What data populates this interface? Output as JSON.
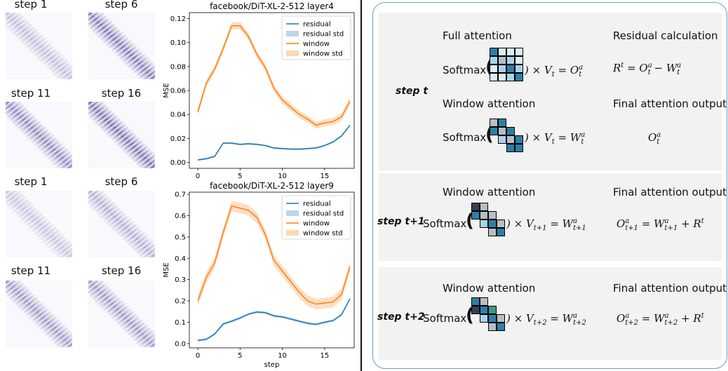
{
  "heatmaps": {
    "top": [
      {
        "label": "step 1",
        "intensity": 0.35
      },
      {
        "label": "step 6",
        "intensity": 0.8
      },
      {
        "label": "step 11",
        "intensity": 0.7
      },
      {
        "label": "step 16",
        "intensity": 0.85
      }
    ],
    "bottom": [
      {
        "label": "step 1",
        "intensity": 0.3
      },
      {
        "label": "step 6",
        "intensity": 0.45
      },
      {
        "label": "step 11",
        "intensity": 0.6
      },
      {
        "label": "step 16",
        "intensity": 0.6
      }
    ]
  },
  "chart_data": [
    {
      "type": "line",
      "title": "facebook/DiT-XL-2-512 layer4",
      "xlabel": "",
      "ylabel": "MSE",
      "xlim": [
        -1,
        18.5
      ],
      "ylim": [
        -0.005,
        0.125
      ],
      "xticks": [
        0,
        5,
        10,
        15
      ],
      "yticks": [
        0.0,
        0.02,
        0.04,
        0.06,
        0.08,
        0.1,
        0.12
      ],
      "ytick_labels": [
        "0.00",
        "0.02",
        "0.04",
        "0.06",
        "0.08",
        "0.10",
        "0.12"
      ],
      "legend": [
        "residual",
        "residual std",
        "window",
        "window std"
      ],
      "x": [
        0,
        1,
        2,
        3,
        4,
        5,
        6,
        7,
        8,
        9,
        10,
        11,
        12,
        13,
        14,
        15,
        16,
        17,
        18
      ],
      "series": [
        {
          "name": "residual",
          "color": "#1f77b4",
          "std": 0.0008,
          "values": [
            0.002,
            0.003,
            0.005,
            0.016,
            0.016,
            0.015,
            0.0155,
            0.015,
            0.014,
            0.012,
            0.0115,
            0.011,
            0.011,
            0.0115,
            0.012,
            0.014,
            0.017,
            0.022,
            0.031
          ]
        },
        {
          "name": "window",
          "color": "#ff7f0e",
          "std": 0.003,
          "values": [
            0.042,
            0.066,
            0.078,
            0.095,
            0.114,
            0.114,
            0.105,
            0.09,
            0.079,
            0.062,
            0.052,
            0.046,
            0.04,
            0.036,
            0.031,
            0.033,
            0.034,
            0.038,
            0.051
          ]
        }
      ]
    },
    {
      "type": "line",
      "title": "facebook/DiT-XL-2-512 layer9",
      "xlabel": "step",
      "ylabel": "MSE",
      "xlim": [
        -1,
        18.5
      ],
      "ylim": [
        -0.02,
        0.71
      ],
      "xticks": [
        0,
        5,
        10,
        15
      ],
      "yticks": [
        0.0,
        0.1,
        0.2,
        0.3,
        0.4,
        0.5,
        0.6,
        0.7
      ],
      "ytick_labels": [
        "0.0",
        "0.1",
        "0.2",
        "0.3",
        "0.4",
        "0.5",
        "0.6",
        "0.7"
      ],
      "legend": [
        "residual",
        "residual std",
        "window",
        "window std"
      ],
      "x": [
        0,
        1,
        2,
        3,
        4,
        5,
        6,
        7,
        8,
        9,
        10,
        11,
        12,
        13,
        14,
        15,
        16,
        17,
        18
      ],
      "series": [
        {
          "name": "residual",
          "color": "#1f77b4",
          "std": 0.006,
          "values": [
            0.015,
            0.02,
            0.045,
            0.092,
            0.105,
            0.12,
            0.138,
            0.148,
            0.145,
            0.13,
            0.125,
            0.115,
            0.105,
            0.095,
            0.09,
            0.1,
            0.108,
            0.135,
            0.21
          ]
        },
        {
          "name": "window",
          "color": "#ff7f0e",
          "std": 0.025,
          "values": [
            0.2,
            0.31,
            0.38,
            0.52,
            0.645,
            0.635,
            0.625,
            0.59,
            0.51,
            0.39,
            0.34,
            0.29,
            0.24,
            0.2,
            0.185,
            0.19,
            0.195,
            0.23,
            0.36
          ]
        }
      ]
    }
  ],
  "diagram": {
    "step_t": {
      "label": "step t",
      "full_attention": "Full attention",
      "residual_calc": "Residual calculation",
      "softmax": "Softmax",
      "eq_full": ") × V",
      "eq_full_sub": "t",
      "eq_full_rhs": " = O",
      "eq_full_rhs_sup": "a",
      "eq_full_rhs_sub": "t",
      "residual_eq": "R",
      "residual_sup": "t",
      "residual_mid": " = O",
      "residual_sup2": "a",
      "residual_sub2": "t",
      "residual_minus": " − W",
      "residual_sup3": "a",
      "residual_sub3": "t",
      "window_attention": "Window attention",
      "final_output": "Final attention output",
      "eq_window_rhs": " = W",
      "final_o": "O",
      "final_sup": "a",
      "final_sub": "t"
    },
    "step_t1": {
      "label": "step t+1",
      "window_attention": "Window attention",
      "final_output": "Final attention output",
      "softmax": "Softmax",
      "eq_lhs": ") × V",
      "eq_lhs_sub": "t+1",
      "eq_rhs": " = W",
      "eq_rhs_sup": "a",
      "eq_rhs_sub": "t+1",
      "final_o": "O",
      "final_sup": "a",
      "final_sub": "t+1",
      "final_mid": " = W",
      "final_sup2": "a",
      "final_sub2": "t+1",
      "final_plus": " + R",
      "final_sup3": "t"
    },
    "step_t2": {
      "label": "step t+2",
      "window_attention": "Window attention",
      "final_output": "Final attention output",
      "softmax": "Softmax",
      "eq_lhs": ") × V",
      "eq_lhs_sub": "t+2",
      "eq_rhs": " = W",
      "eq_rhs_sup": "a",
      "eq_rhs_sub": "t+2",
      "final_o": "O",
      "final_sup": "a",
      "final_sub": "t+2",
      "final_mid": " = W",
      "final_sup2": "a",
      "final_sub2": "t+2",
      "final_plus": " + R",
      "final_sup3": "t"
    }
  }
}
